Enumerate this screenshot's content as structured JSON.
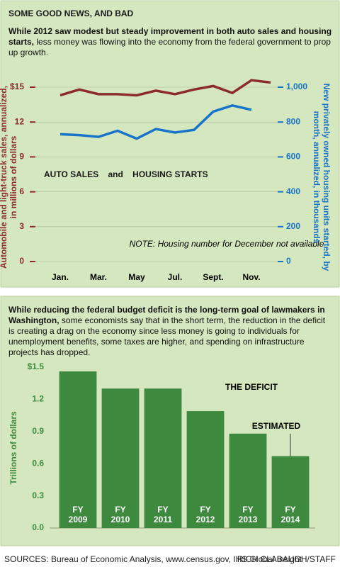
{
  "title": "SOME GOOD NEWS, AND BAD",
  "chart_data": [
    {
      "type": "line",
      "subtitle_bold": "While 2012 saw modest but steady improvement in both auto sales and housing starts,",
      "subtitle": "less money was flowing into the economy from the federal government to prop up growth.",
      "categories": [
        "Jan.",
        null,
        "Mar.",
        null,
        "May",
        null,
        "Jul.",
        null,
        "Sept.",
        null,
        "Nov.",
        null
      ],
      "series": [
        {
          "name": "AUTO SALES",
          "color": "#8b2b2b",
          "values": [
            14.3,
            14.8,
            14.4,
            14.4,
            14.3,
            14.7,
            14.4,
            14.8,
            15.1,
            14.5,
            15.6,
            15.4
          ]
        },
        {
          "name": "HOUSING STARTS",
          "color": "#1874c8",
          "axis": "y2",
          "values": [
            730,
            725,
            715,
            750,
            705,
            760,
            740,
            755,
            860,
            895,
            870,
            null
          ]
        }
      ],
      "ylim": [
        0,
        15
      ],
      "yticks": [
        0,
        3,
        6,
        9,
        12,
        {
          "value": 15,
          "label": "$15"
        }
      ],
      "y2lim": [
        0,
        1000
      ],
      "y2ticks": [
        0,
        200,
        400,
        600,
        800,
        {
          "value": 1000,
          "label": "1,000"
        }
      ],
      "ylabel": "Automobile and light-truck sales, annualized, in millions of dollars",
      "y2label": "New privately owned housing units started, by month, annualized, in thousands",
      "legend_joiner": "and",
      "note": "NOTE: Housing number for December not available",
      "grid": true
    },
    {
      "type": "bar",
      "subtitle_bold": "While reducing the federal budget deficit is the long-term goal of lawmakers in Washington,",
      "subtitle": "some economists say that in the short term, the reduction in the deficit is creating a drag on the economy since less money is going to individuals for unemployment benefits, some taxes are higher, and spending on infrastructure projects has dropped.",
      "title": "THE DEFICIT",
      "categories": [
        "FY 2009",
        "FY 2010",
        "FY 2011",
        "FY 2012",
        "FY 2013",
        "FY 2014"
      ],
      "values": [
        1.46,
        1.3,
        1.3,
        1.09,
        0.88,
        0.67
      ],
      "color": "#3d8a3f",
      "ylim": [
        0,
        1.5
      ],
      "yticks": [
        {
          "value": 0,
          "label": "0.0"
        },
        0.3,
        0.6,
        0.9,
        1.2,
        {
          "value": 1.5,
          "label": "$1.5"
        }
      ],
      "ylabel": "Trillions of dollars",
      "annotation": "ESTIMATED",
      "grid": false
    }
  ],
  "footer": {
    "sources": "SOURCES: Bureau of Economic Analysis,  www.census.gov, IHS Global Insight",
    "credit": "RICH CLABAUGH/STAFF"
  }
}
